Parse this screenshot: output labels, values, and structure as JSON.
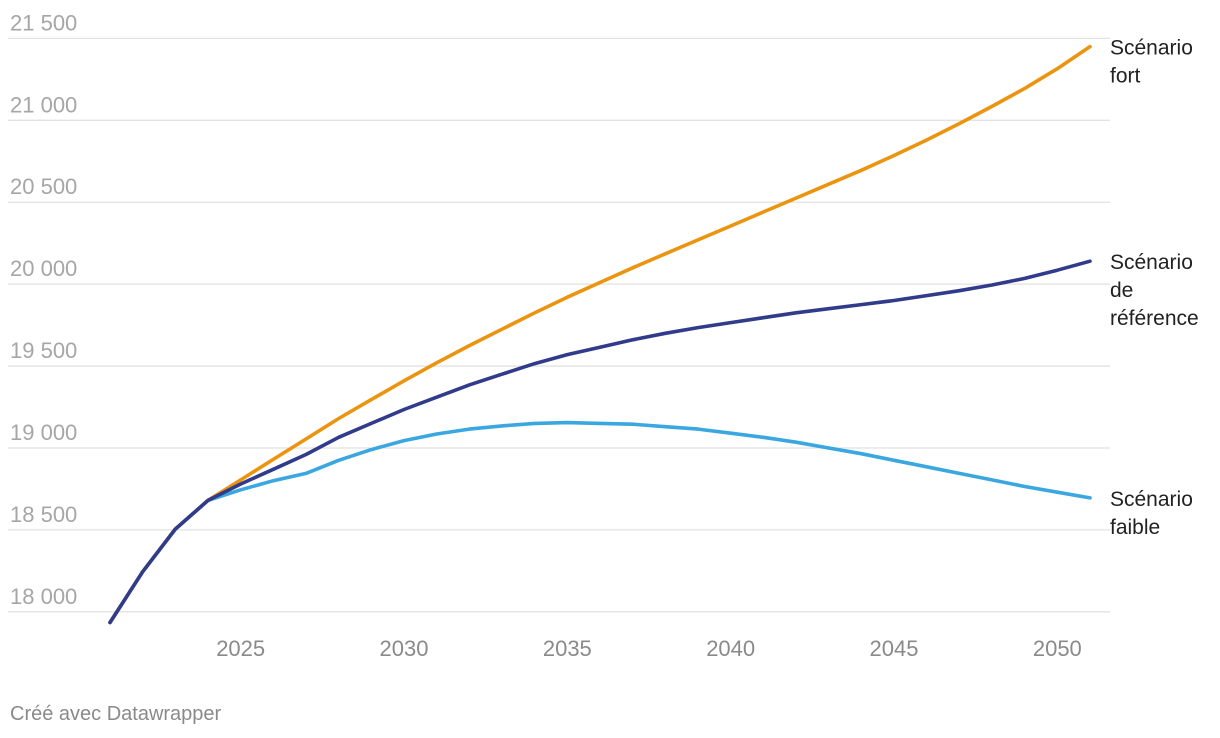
{
  "chart_data": {
    "type": "line",
    "xlim": [
      2021,
      2051
    ],
    "ylim": [
      17950,
      21600
    ],
    "y_ticks": [
      {
        "value": 18000,
        "label": "18 000"
      },
      {
        "value": 18500,
        "label": "18 500"
      },
      {
        "value": 19000,
        "label": "19 000"
      },
      {
        "value": 19500,
        "label": "19 500"
      },
      {
        "value": 20000,
        "label": "20 000"
      },
      {
        "value": 20500,
        "label": "20 500"
      },
      {
        "value": 21000,
        "label": "21 000"
      },
      {
        "value": 21500,
        "label": "21 500"
      }
    ],
    "x_ticks": [
      {
        "value": 2025,
        "label": "2025"
      },
      {
        "value": 2030,
        "label": "2030"
      },
      {
        "value": 2035,
        "label": "2035"
      },
      {
        "value": 2040,
        "label": "2040"
      },
      {
        "value": 2045,
        "label": "2045"
      },
      {
        "value": 2050,
        "label": "2050"
      }
    ],
    "grid": true,
    "series": [
      {
        "name": "Scénario fort",
        "label_lines": [
          "Scénario",
          "fort"
        ],
        "color": "#ea9410",
        "x": [
          2021,
          2022,
          2023,
          2024,
          2025,
          2026,
          2027,
          2028,
          2029,
          2030,
          2031,
          2032,
          2033,
          2034,
          2035,
          2036,
          2037,
          2038,
          2039,
          2040,
          2041,
          2042,
          2043,
          2044,
          2045,
          2046,
          2047,
          2048,
          2049,
          2050,
          2051
        ],
        "y": [
          17935,
          18245,
          18505,
          18680,
          18805,
          18930,
          19055,
          19180,
          19295,
          19410,
          19520,
          19625,
          19725,
          19825,
          19920,
          20010,
          20100,
          20185,
          20270,
          20355,
          20440,
          20525,
          20610,
          20695,
          20785,
          20880,
          20980,
          21085,
          21195,
          21315,
          21450
        ]
      },
      {
        "name": "Scénario de référence",
        "label_lines": [
          "Scénario",
          "de",
          "référence"
        ],
        "color": "#313b8b",
        "x": [
          2021,
          2022,
          2023,
          2024,
          2025,
          2026,
          2027,
          2028,
          2029,
          2030,
          2031,
          2032,
          2033,
          2034,
          2035,
          2036,
          2037,
          2038,
          2039,
          2040,
          2041,
          2042,
          2043,
          2044,
          2045,
          2046,
          2047,
          2048,
          2049,
          2050,
          2051
        ],
        "y": [
          17935,
          18245,
          18505,
          18680,
          18780,
          18870,
          18960,
          19065,
          19150,
          19235,
          19310,
          19385,
          19450,
          19515,
          19570,
          19615,
          19660,
          19700,
          19735,
          19765,
          19795,
          19825,
          19850,
          19875,
          19900,
          19930,
          19960,
          19995,
          20035,
          20085,
          20140
        ]
      },
      {
        "name": "Scénario faible",
        "label_lines": [
          "Scénario",
          "faible"
        ],
        "color": "#3ba7e0",
        "x": [
          2021,
          2022,
          2023,
          2024,
          2025,
          2026,
          2027,
          2028,
          2029,
          2030,
          2031,
          2032,
          2033,
          2034,
          2035,
          2036,
          2037,
          2038,
          2039,
          2040,
          2041,
          2042,
          2043,
          2044,
          2045,
          2046,
          2047,
          2048,
          2049,
          2050,
          2051
        ],
        "y": [
          17935,
          18245,
          18505,
          18680,
          18745,
          18800,
          18845,
          18925,
          18990,
          19045,
          19085,
          19115,
          19135,
          19150,
          19155,
          19150,
          19145,
          19130,
          19115,
          19090,
          19065,
          19035,
          19000,
          18965,
          18925,
          18885,
          18845,
          18805,
          18765,
          18730,
          18695
        ]
      }
    ]
  },
  "credit": "Créé avec Datawrapper"
}
